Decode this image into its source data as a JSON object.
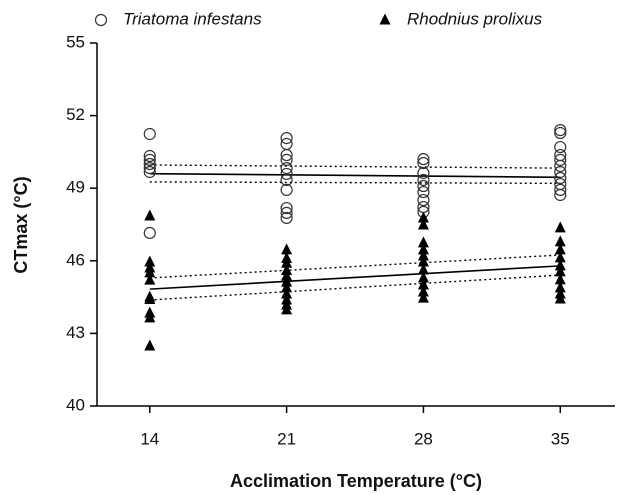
{
  "chart_data": {
    "type": "scatter",
    "x_label": "Acclimation Temperature (°C)",
    "y_label": "CTmax (°C)",
    "xlim": [
      11.3,
      37.8
    ],
    "ylim": [
      40,
      55
    ],
    "xticks": [
      14,
      21,
      28,
      35
    ],
    "yticks": [
      40,
      43,
      46,
      49,
      52,
      55
    ],
    "legend": "top",
    "series": [
      {
        "name": "Triatoma infestans",
        "marker": "circle",
        "color": "#333333",
        "x": [
          14,
          14,
          14,
          14,
          14,
          14,
          14,
          21,
          21,
          21,
          21,
          21,
          21,
          21,
          21,
          21,
          21,
          21,
          28,
          28,
          28,
          28,
          28,
          28,
          28,
          28,
          28,
          35,
          35,
          35,
          35,
          35,
          35,
          35,
          35,
          35,
          35,
          35
        ],
        "values": [
          51.24,
          50.33,
          50.17,
          50.0,
          49.83,
          49.67,
          47.15,
          51.07,
          50.83,
          50.37,
          50.17,
          49.83,
          49.59,
          49.34,
          48.93,
          48.18,
          47.98,
          47.77,
          50.2,
          50.04,
          49.63,
          49.34,
          49.09,
          48.84,
          48.51,
          48.22,
          48.02,
          51.4,
          51.28,
          50.7,
          50.37,
          50.17,
          49.92,
          49.67,
          49.42,
          49.17,
          48.93,
          48.72
        ]
      },
      {
        "name": "Rhodnius prolixus",
        "marker": "triangle",
        "color": "#000000",
        "x": [
          14,
          14,
          14,
          14,
          14,
          14,
          14,
          14,
          14,
          14,
          21,
          21,
          21,
          21,
          21,
          21,
          21,
          21,
          21,
          21,
          21,
          28,
          28,
          28,
          28,
          28,
          28,
          28,
          28,
          28,
          28,
          28,
          35,
          35,
          35,
          35,
          35,
          35,
          35,
          35,
          35,
          35
        ],
        "values": [
          47.85,
          45.95,
          45.7,
          45.5,
          45.2,
          44.5,
          44.4,
          43.84,
          43.64,
          42.48,
          46.45,
          46.1,
          45.9,
          45.6,
          45.37,
          45.12,
          44.88,
          44.63,
          44.38,
          44.17,
          43.97,
          47.77,
          47.48,
          46.74,
          46.45,
          46.2,
          45.95,
          45.62,
          45.29,
          45.0,
          44.71,
          44.46,
          47.36,
          46.78,
          46.45,
          46.12,
          45.79,
          45.54,
          45.21,
          44.88,
          44.63,
          44.42
        ]
      }
    ],
    "lines": [
      {
        "style": "solid",
        "x": [
          14,
          35
        ],
        "values": [
          49.6,
          49.45
        ]
      },
      {
        "style": "dotted",
        "x": [
          14,
          35
        ],
        "values": [
          49.96,
          49.83
        ]
      },
      {
        "style": "dotted",
        "x": [
          14,
          35
        ],
        "values": [
          49.26,
          49.2
        ]
      },
      {
        "style": "solid",
        "x": [
          14,
          35
        ],
        "values": [
          44.83,
          45.79
        ]
      },
      {
        "style": "dotted",
        "x": [
          14,
          35
        ],
        "values": [
          45.29,
          46.24
        ]
      },
      {
        "style": "dotted",
        "x": [
          14,
          35
        ],
        "values": [
          44.38,
          45.41
        ]
      }
    ]
  }
}
